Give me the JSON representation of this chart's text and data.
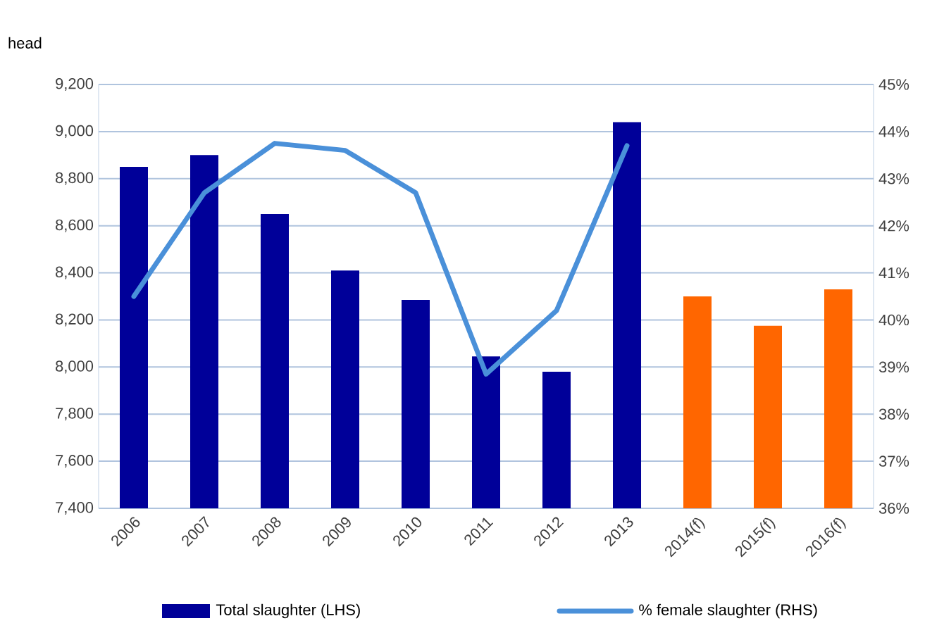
{
  "chart_data": {
    "type": "bar",
    "ylabel": "head",
    "categories": [
      "2006",
      "2007",
      "2008",
      "2009",
      "2010",
      "2011",
      "2012",
      "2013",
      "2014(f)",
      "2015(f)",
      "2016(f)"
    ],
    "series": [
      {
        "name": "Total slaughter (LHS)",
        "color": "#000099",
        "colors": [
          "#000099",
          "#000099",
          "#000099",
          "#000099",
          "#000099",
          "#000099",
          "#000099",
          "#000099",
          "#ff6600",
          "#ff6600",
          "#ff6600"
        ],
        "values": [
          8850,
          8900,
          8650,
          8410,
          8285,
          8045,
          7980,
          9040,
          8300,
          8175,
          8330
        ]
      },
      {
        "name": "% female slaughter (RHS)",
        "type": "line",
        "axis": "y2",
        "color": "#4a90d9",
        "values": [
          40.5,
          42.7,
          43.75,
          43.6,
          42.7,
          38.85,
          40.2,
          43.7,
          null,
          null,
          null
        ]
      }
    ],
    "ylim": [
      7400,
      9200
    ],
    "yticks": [
      {
        "value": 7400,
        "label": "7,400"
      },
      {
        "value": 7600,
        "label": "7,600"
      },
      {
        "value": 7800,
        "label": "7,800"
      },
      {
        "value": 8000,
        "label": "8,000"
      },
      {
        "value": 8200,
        "label": "8,200"
      },
      {
        "value": 8400,
        "label": "8,400"
      },
      {
        "value": 8600,
        "label": "8,600"
      },
      {
        "value": 8800,
        "label": "8,800"
      },
      {
        "value": 9000,
        "label": "9,000"
      },
      {
        "value": 9200,
        "label": "9,200"
      }
    ],
    "y2lim": [
      36,
      45
    ],
    "y2ticks": [
      {
        "value": 36,
        "label": "36%"
      },
      {
        "value": 37,
        "label": "37%"
      },
      {
        "value": 38,
        "label": "38%"
      },
      {
        "value": 39,
        "label": "39%"
      },
      {
        "value": 40,
        "label": "40%"
      },
      {
        "value": 41,
        "label": "41%"
      },
      {
        "value": 42,
        "label": "42%"
      },
      {
        "value": 43,
        "label": "43%"
      },
      {
        "value": 44,
        "label": "44%"
      },
      {
        "value": 45,
        "label": "45%"
      }
    ],
    "grid": "y",
    "legend": "bottom",
    "marker": "none",
    "line_style": "solid"
  }
}
